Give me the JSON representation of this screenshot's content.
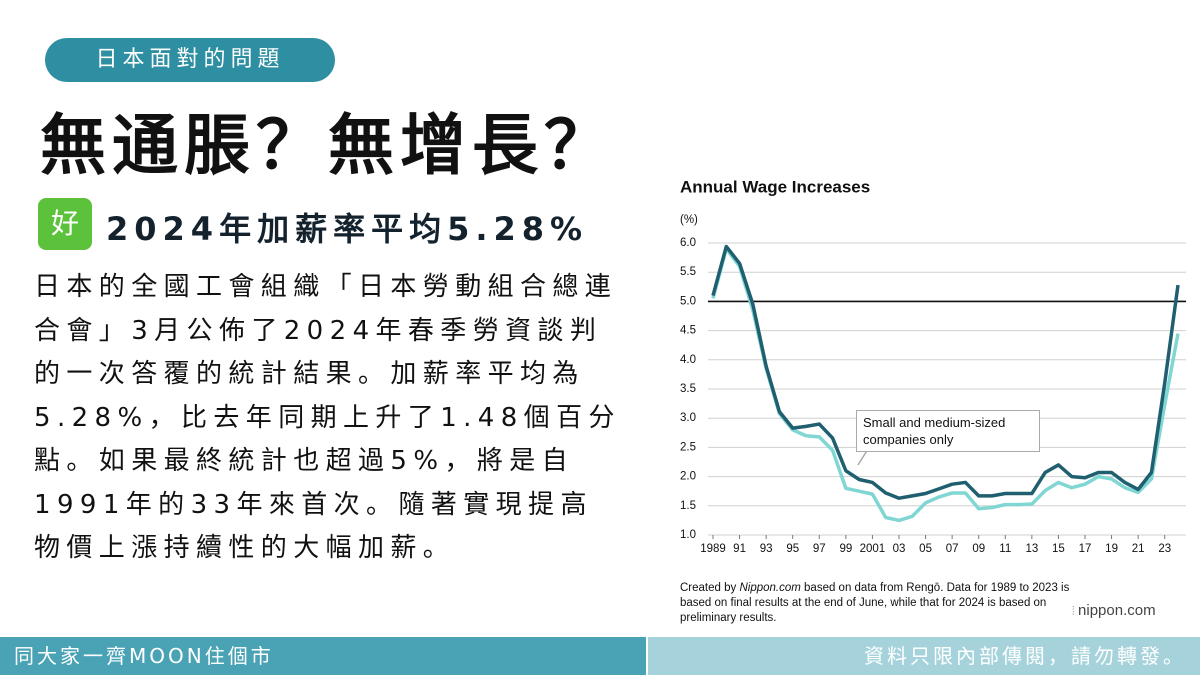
{
  "header": {
    "tag": "日本面對的問題",
    "headline": "無通脹？無增長？",
    "badge": "好",
    "subheadline": "2024年加薪率平均5.28%"
  },
  "body": {
    "lines": [
      "日本的全國工會組織「日本勞動組合總連",
      "合會」3月公佈了2024年春季勞資談判",
      "的一次答覆的統計結果。加薪率平均為",
      "5.28%，比去年同期上升了1.48個百分",
      "點。如果最終統計也超過5%，將是自",
      "1991年的33年來首次。隨著實現提高",
      "物價上漲持續性的大幅加薪。"
    ]
  },
  "chart_data": {
    "type": "line",
    "title": "Annual Wage Increases",
    "y_unit": "(%)",
    "x": [
      1989,
      1990,
      1991,
      1992,
      1993,
      1994,
      1995,
      1996,
      1997,
      1998,
      1999,
      2000,
      2001,
      2002,
      2003,
      2004,
      2005,
      2006,
      2007,
      2008,
      2009,
      2010,
      2011,
      2012,
      2013,
      2014,
      2015,
      2016,
      2017,
      2018,
      2019,
      2020,
      2021,
      2022,
      2023,
      2024
    ],
    "series": [
      {
        "color": "#1f5f6f",
        "values": [
          5.1,
          5.94,
          5.65,
          4.95,
          3.89,
          3.11,
          2.83,
          2.86,
          2.9,
          2.66,
          2.1,
          1.95,
          1.9,
          1.72,
          1.63,
          1.67,
          1.71,
          1.79,
          1.87,
          1.9,
          1.67,
          1.67,
          1.71,
          1.71,
          1.71,
          2.07,
          2.2,
          2.0,
          1.98,
          2.07,
          2.07,
          1.9,
          1.78,
          2.07,
          3.6,
          5.28
        ]
      },
      {
        "name": "Small and medium-sized companies only",
        "color": "#7fd6d2",
        "values": [
          5.05,
          5.9,
          5.6,
          4.85,
          3.85,
          3.08,
          2.8,
          2.7,
          2.68,
          2.45,
          1.8,
          1.75,
          1.7,
          1.3,
          1.25,
          1.32,
          1.55,
          1.65,
          1.72,
          1.72,
          1.45,
          1.47,
          1.52,
          1.52,
          1.53,
          1.76,
          1.9,
          1.81,
          1.87,
          2.0,
          1.96,
          1.81,
          1.73,
          1.96,
          3.23,
          4.45
        ]
      }
    ],
    "reference_line": 5.0,
    "xlim": [
      1989,
      2024
    ],
    "xticks": [
      1989,
      {
        "value": 1991,
        "label": "91"
      },
      {
        "value": 1993,
        "label": "93"
      },
      {
        "value": 1995,
        "label": "95"
      },
      {
        "value": 1997,
        "label": "97"
      },
      {
        "value": 1999,
        "label": "99"
      },
      2001,
      {
        "value": 2003,
        "label": "03"
      },
      {
        "value": 2005,
        "label": "05"
      },
      {
        "value": 2007,
        "label": "07"
      },
      {
        "value": 2009,
        "label": "09"
      },
      {
        "value": 2011,
        "label": "11"
      },
      {
        "value": 2013,
        "label": "13"
      },
      {
        "value": 2015,
        "label": "15"
      },
      {
        "value": 2017,
        "label": "17"
      },
      {
        "value": 2019,
        "label": "19"
      },
      {
        "value": 2021,
        "label": "21"
      },
      {
        "value": 2023,
        "label": "23"
      }
    ],
    "ylim": [
      1.0,
      6.0
    ],
    "yticks": [
      {
        "value": 1,
        "label": "1.0"
      },
      1.5,
      {
        "value": 2,
        "label": "2.0"
      },
      2.5,
      {
        "value": 3,
        "label": "3.0"
      },
      3.5,
      {
        "value": 4,
        "label": "4.0"
      },
      4.5,
      {
        "value": 5,
        "label": "5.0"
      },
      5.5,
      {
        "value": 6,
        "label": "6.0"
      }
    ],
    "grid": true,
    "source": [
      "Created by ",
      "Nippon.com",
      " based on data from Rengō. Data for 1989 to 2023 is based on final results at the end of June, while that for 2024 is based on preliminary results."
    ]
  },
  "logo": "nippon.com",
  "footer": {
    "left": "同大家一齊MOON住個市",
    "right": "資料只限內部傳閱，請勿轉發。"
  }
}
